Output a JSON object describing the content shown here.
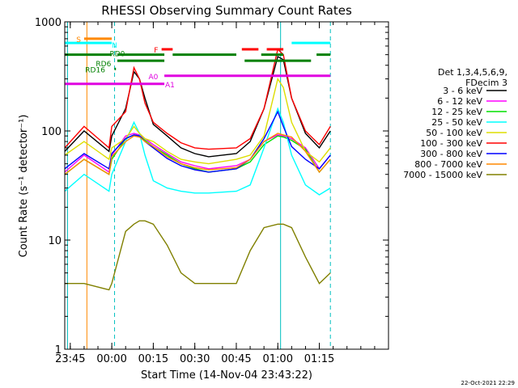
{
  "chart_data": {
    "type": "line",
    "title": "RHESSI Observing Summary Count Rates",
    "xlabel": "Start Time (14-Nov-04 23:43:22)",
    "ylabel": "Count Rate (s⁻¹ detector⁻¹)",
    "y_scale": "log",
    "ylim": [
      1,
      1000
    ],
    "xlim_minutes": [
      -17,
      100
    ],
    "x_ticks": [
      {
        "label": "23:45",
        "minute": -15
      },
      {
        "label": "00:00",
        "minute": 0
      },
      {
        "label": "00:15",
        "minute": 15
      },
      {
        "label": "00:30",
        "minute": 30
      },
      {
        "label": "00:45",
        "minute": 45
      },
      {
        "label": "01:00",
        "minute": 60
      },
      {
        "label": "01:15",
        "minute": 75
      }
    ],
    "y_ticks": [
      {
        "label": "1",
        "value": 1
      },
      {
        "label": "10",
        "value": 10
      },
      {
        "label": "100",
        "value": 100
      },
      {
        "label": "1000",
        "value": 1000
      }
    ],
    "legend": {
      "header": [
        "Det 1,3,4,5,6,9,",
        "FDecim 3"
      ],
      "placement": "right"
    },
    "series": [
      {
        "name": "3 - 6 keV",
        "color": "#000000",
        "x": [
          -17,
          -10,
          -1,
          0,
          5,
          8,
          10,
          12,
          15,
          20,
          25,
          30,
          35,
          45,
          50,
          55,
          60,
          62,
          65,
          70,
          75,
          79
        ],
        "y": [
          65,
          100,
          65,
          90,
          160,
          350,
          300,
          200,
          115,
          90,
          70,
          62,
          58,
          62,
          80,
          160,
          480,
          450,
          200,
          95,
          70,
          100
        ]
      },
      {
        "name": "6 - 12 keV",
        "color": "#ff00ff",
        "x": [
          -17,
          -10,
          -1,
          0,
          5,
          8,
          10,
          12,
          15,
          20,
          25,
          30,
          35,
          45,
          50,
          55,
          60,
          62,
          65,
          70,
          75,
          79
        ],
        "y": [
          42,
          60,
          42,
          60,
          90,
          95,
          92,
          85,
          75,
          62,
          52,
          48,
          45,
          48,
          55,
          80,
          92,
          90,
          85,
          70,
          45,
          60
        ]
      },
      {
        "name": "12 - 25 keV",
        "color": "#00e000",
        "x": [
          -17,
          -10,
          -1,
          0,
          5,
          8,
          10,
          12,
          15,
          20,
          25,
          30,
          35,
          45,
          50,
          55,
          60,
          62,
          65,
          70,
          75,
          79
        ],
        "y": [
          40,
          55,
          40,
          55,
          85,
          92,
          90,
          82,
          72,
          60,
          50,
          45,
          42,
          45,
          52,
          75,
          90,
          88,
          82,
          68,
          42,
          55
        ]
      },
      {
        "name": "25 - 50 keV",
        "color": "#00ffff",
        "x": [
          -17,
          -10,
          -1,
          0,
          5,
          8,
          10,
          12,
          15,
          20,
          25,
          30,
          35,
          45,
          50,
          55,
          60,
          62,
          65,
          70,
          75,
          79
        ],
        "y": [
          28,
          40,
          28,
          40,
          80,
          120,
          95,
          60,
          35,
          30,
          28,
          27,
          27,
          28,
          32,
          70,
          160,
          120,
          60,
          32,
          26,
          30
        ]
      },
      {
        "name": "50 - 100 keV",
        "color": "#dddd00",
        "x": [
          -17,
          -10,
          -1,
          0,
          5,
          8,
          10,
          12,
          15,
          20,
          25,
          30,
          35,
          45,
          50,
          55,
          60,
          62,
          65,
          70,
          75,
          79
        ],
        "y": [
          60,
          80,
          55,
          70,
          85,
          110,
          95,
          85,
          80,
          65,
          55,
          52,
          50,
          55,
          60,
          90,
          300,
          250,
          120,
          65,
          52,
          70
        ]
      },
      {
        "name": "100 - 300 keV",
        "color": "#ff0000",
        "x": [
          -17,
          -10,
          -1,
          0,
          5,
          8,
          10,
          12,
          15,
          20,
          25,
          30,
          35,
          45,
          50,
          55,
          60,
          62,
          65,
          70,
          75,
          79
        ],
        "y": [
          70,
          110,
          70,
          110,
          150,
          380,
          300,
          180,
          120,
          95,
          78,
          70,
          68,
          70,
          85,
          160,
          560,
          500,
          200,
          100,
          75,
          110
        ]
      },
      {
        "name": "300 - 800 keV",
        "color": "#0000ff",
        "x": [
          -17,
          -10,
          -1,
          0,
          5,
          8,
          10,
          12,
          15,
          20,
          25,
          30,
          35,
          45,
          50,
          55,
          60,
          62,
          65,
          70,
          75,
          79
        ],
        "y": [
          45,
          62,
          45,
          62,
          85,
          92,
          90,
          80,
          70,
          56,
          48,
          44,
          42,
          45,
          55,
          85,
          150,
          110,
          72,
          55,
          45,
          60
        ]
      },
      {
        "name": "800 - 7000 keV",
        "color": "#ff8800",
        "x": [
          -17,
          -10,
          -1,
          0,
          5,
          8,
          10,
          12,
          15,
          20,
          25,
          30,
          35,
          45,
          50,
          55,
          60,
          62,
          65,
          70,
          75,
          79
        ],
        "y": [
          40,
          55,
          40,
          58,
          80,
          90,
          88,
          80,
          72,
          58,
          50,
          46,
          44,
          46,
          55,
          80,
          95,
          92,
          88,
          65,
          42,
          55
        ]
      },
      {
        "name": "7000 - 15000 keV",
        "color": "#808000",
        "x": [
          -17,
          -10,
          -1,
          0,
          5,
          8,
          10,
          12,
          15,
          20,
          25,
          30,
          35,
          45,
          50,
          55,
          60,
          62,
          65,
          70,
          75,
          79
        ],
        "y": [
          4,
          4,
          3.5,
          4,
          12,
          14,
          15,
          15,
          14,
          9,
          5,
          4,
          4,
          4,
          8,
          13,
          14,
          14,
          13,
          7,
          4,
          5
        ]
      }
    ],
    "flag_bars": [
      {
        "label": "S",
        "color": "#ff8800",
        "x_start": -10,
        "x_end": 0,
        "y": 700
      },
      {
        "label": "N",
        "color": "#00ffff",
        "x_start": -17,
        "x_end": 0,
        "y": 640
      },
      {
        "label": "F",
        "color": "#ff0000",
        "x_start": 18,
        "x_end": 22,
        "y": 560
      },
      {
        "label": "F",
        "color": "#ff0000",
        "x_start": 47,
        "x_end": 53,
        "y": 560
      },
      {
        "label": "F",
        "color": "#ff0000",
        "x_start": 56,
        "x_end": 62,
        "y": 560
      },
      {
        "label": "N",
        "color": "#00ffff",
        "x_start": 65,
        "x_end": 79,
        "y": 640
      },
      {
        "label": "RD0",
        "color": "#008000",
        "x_start": -17,
        "x_end": 0,
        "y": 500
      },
      {
        "label": "RD0",
        "color": "#008000",
        "x_start": 2,
        "x_end": 19,
        "y": 500
      },
      {
        "label": "RD0",
        "color": "#008000",
        "x_start": 22,
        "x_end": 45,
        "y": 500
      },
      {
        "label": "RD0",
        "color": "#008000",
        "x_start": 54,
        "x_end": 62,
        "y": 500
      },
      {
        "label": "RD0",
        "color": "#008000",
        "x_start": 74,
        "x_end": 79,
        "y": 500
      },
      {
        "label": "RD6",
        "color": "#008000",
        "x_start": 2,
        "x_end": 19,
        "y": 440
      },
      {
        "label": "RD6",
        "color": "#008000",
        "x_start": 48,
        "x_end": 72,
        "y": 440
      },
      {
        "label": "RD16",
        "color": "#008000",
        "x_start": 1,
        "x_end": 1.5,
        "y": 370
      },
      {
        "label": "A0",
        "color": "#e000e0",
        "x_start": 19,
        "x_end": 79,
        "y": 320
      },
      {
        "label": "A1",
        "color": "#e000e0",
        "x_start": -17,
        "x_end": 19,
        "y": 270
      }
    ],
    "flag_labels": [
      {
        "text": "S",
        "color": "#ff8800",
        "x": -12,
        "y": 700
      },
      {
        "text": "N",
        "color": "#00ffff",
        "x": 1,
        "y": 620
      },
      {
        "text": "F",
        "color": "#ff0000",
        "x": 16,
        "y": 560
      },
      {
        "text": "RD0",
        "color": "#008000",
        "x": 2,
        "y": 520
      },
      {
        "text": "RD6",
        "color": "#008000",
        "x": -3,
        "y": 420
      },
      {
        "text": "RD16",
        "color": "#008000",
        "x": -6,
        "y": 370
      },
      {
        "text": "A0",
        "color": "#e000e0",
        "x": 15,
        "y": 320
      },
      {
        "text": "A1",
        "color": "#e000e0",
        "x": 21,
        "y": 270
      }
    ],
    "vertical_markers": [
      {
        "color": "#ff8800",
        "x": -9,
        "style": "solid"
      },
      {
        "color": "#00c0c0",
        "x": -16,
        "style": "solid"
      },
      {
        "color": "#00c0c0",
        "x": 1,
        "style": "dashed"
      },
      {
        "color": "#00c0c0",
        "x": 61,
        "style": "solid"
      },
      {
        "color": "#00c0c0",
        "x": 79,
        "style": "dashed"
      }
    ]
  },
  "footer": {
    "date": "22-Oct-2021 22:29"
  }
}
